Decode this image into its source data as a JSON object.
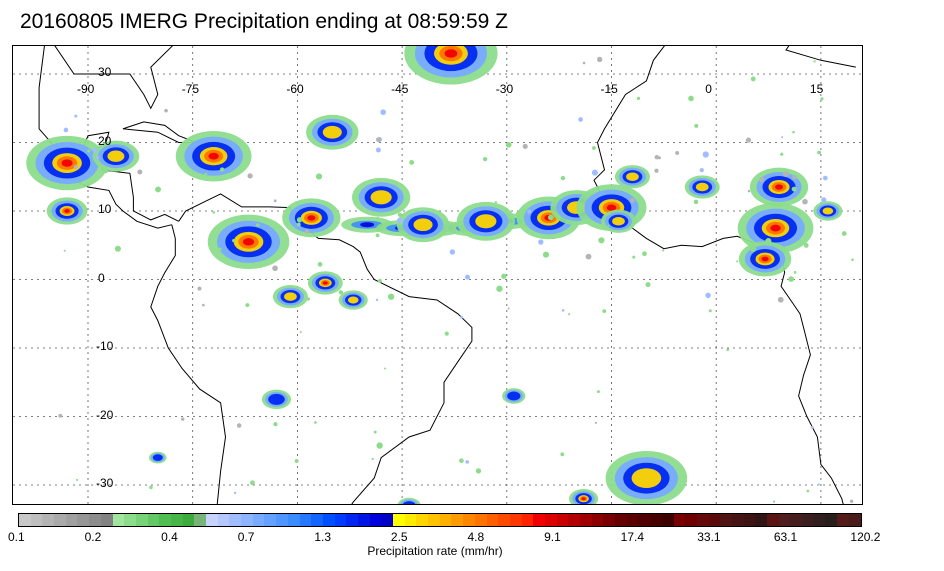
{
  "title": "20160805 IMERG Precipitation ending at 08:59:59 Z",
  "map": {
    "lon_labels": [
      "-90",
      "-75",
      "-60",
      "-45",
      "-30",
      "-15",
      "0",
      "15"
    ],
    "lon_values": [
      -90,
      -75,
      -60,
      -45,
      -30,
      -15,
      0,
      15
    ],
    "lat_labels": [
      "30",
      "20",
      "10",
      "0",
      "-10",
      "-20",
      "-30"
    ],
    "lat_values": [
      30,
      20,
      10,
      0,
      -10,
      -20,
      -30
    ],
    "lon_range": [
      -96,
      20
    ],
    "lat_range": [
      36,
      -36
    ],
    "grid": "dotted",
    "coastline_color": "#000000"
  },
  "colorbar": {
    "title": "Precipitation rate (mm/hr)",
    "tick_labels": [
      "0.1",
      "0.2",
      "0.4",
      "0.7",
      "1.3",
      "2.5",
      "4.8",
      "9.1",
      "17.4",
      "33.1",
      "63.1",
      "120.2"
    ],
    "colors": [
      "#c8c8c8",
      "#bebebe",
      "#b4b4b4",
      "#aaaaaa",
      "#a0a0a0",
      "#969696",
      "#8c8c8c",
      "#828282",
      "#a0e6a0",
      "#8cdc8c",
      "#78d278",
      "#64c864",
      "#50be50",
      "#46b446",
      "#3caa3c",
      "#78b478",
      "#c8d2ff",
      "#b4c8ff",
      "#a0beff",
      "#8cb4ff",
      "#78aaff",
      "#64a0ff",
      "#5096ff",
      "#3c8cff",
      "#2878ff",
      "#1464ff",
      "#0050ff",
      "#003cff",
      "#0028f0",
      "#0014e6",
      "#0000dc",
      "#0000c8",
      "#ffff00",
      "#ffeb00",
      "#ffd700",
      "#ffc300",
      "#ffaf00",
      "#ff9b00",
      "#ff8700",
      "#ff7300",
      "#ff5f00",
      "#ff4b00",
      "#ff3700",
      "#ff2300",
      "#f00000",
      "#dc0000",
      "#c80000",
      "#b40000",
      "#a00000",
      "#8c0000",
      "#780000",
      "#640000",
      "#5a0000",
      "#500000",
      "#460000",
      "#3c0000",
      "#780000",
      "#6e0000",
      "#640a0a",
      "#5a0a0a",
      "#501414",
      "#461414",
      "#3c1414",
      "#321414",
      "#5a1414",
      "#501e1e",
      "#461e1e",
      "#3c1e1e",
      "#321e1e",
      "#281e1e",
      "#551a1a",
      "#4b1a1a"
    ]
  },
  "precip_cells": [
    {
      "lon": -38,
      "lat": 33,
      "r": 1.6,
      "level": "high"
    },
    {
      "lon": -55,
      "lat": 21.5,
      "r": 0.9,
      "level": "med"
    },
    {
      "lon": -72,
      "lat": 18,
      "r": 1.3,
      "level": "high"
    },
    {
      "lon": -93,
      "lat": 17,
      "r": 1.4,
      "level": "high"
    },
    {
      "lon": -86,
      "lat": 18,
      "r": 0.8,
      "level": "med"
    },
    {
      "lon": -93,
      "lat": 10,
      "r": 0.7,
      "level": "high"
    },
    {
      "lon": -67,
      "lat": 5.5,
      "r": 1.4,
      "level": "high"
    },
    {
      "lon": -58,
      "lat": 9,
      "r": 1.0,
      "level": "high"
    },
    {
      "lon": -48,
      "lat": 12,
      "r": 1.0,
      "level": "med"
    },
    {
      "lon": -42,
      "lat": 8,
      "r": 0.9,
      "level": "med"
    },
    {
      "lon": -33,
      "lat": 8.5,
      "r": 1.0,
      "level": "med"
    },
    {
      "lon": -24,
      "lat": 9,
      "r": 1.1,
      "level": "high"
    },
    {
      "lon": -20,
      "lat": 10.5,
      "r": 0.9,
      "level": "med"
    },
    {
      "lon": -15,
      "lat": 10.5,
      "r": 1.2,
      "level": "high"
    },
    {
      "lon": -12,
      "lat": 15,
      "r": 0.6,
      "level": "med"
    },
    {
      "lon": -2,
      "lat": 13.5,
      "r": 0.6,
      "level": "med"
    },
    {
      "lon": 9,
      "lat": 13.5,
      "r": 1.0,
      "level": "high"
    },
    {
      "lon": 8.5,
      "lat": 7.5,
      "r": 1.3,
      "level": "high"
    },
    {
      "lon": 7,
      "lat": 3,
      "r": 0.9,
      "level": "high"
    },
    {
      "lon": 16,
      "lat": 10,
      "r": 0.5,
      "level": "med"
    },
    {
      "lon": -56,
      "lat": -0.5,
      "r": 0.6,
      "level": "high"
    },
    {
      "lon": -61,
      "lat": -2.5,
      "r": 0.6,
      "level": "med"
    },
    {
      "lon": -52,
      "lat": -3,
      "r": 0.5,
      "level": "med"
    },
    {
      "lon": -63,
      "lat": -17.5,
      "r": 0.5,
      "level": "low"
    },
    {
      "lon": -29,
      "lat": -17,
      "r": 0.4,
      "level": "low"
    },
    {
      "lon": -10,
      "lat": -29,
      "r": 1.4,
      "level": "med"
    },
    {
      "lon": -19,
      "lat": -32,
      "r": 0.5,
      "level": "high"
    },
    {
      "lon": -44,
      "lat": -33,
      "r": 0.4,
      "level": "low"
    },
    {
      "lon": -80,
      "lat": -26,
      "r": 0.3,
      "level": "low"
    },
    {
      "lon": -14,
      "lat": 8.5,
      "r": 0.6,
      "level": "med"
    }
  ],
  "itcz_band": [
    {
      "lon": -50,
      "lat": 8
    },
    {
      "lon": -45,
      "lat": 7.5
    },
    {
      "lon": -40,
      "lat": 7.5
    },
    {
      "lon": -35,
      "lat": 7.5
    },
    {
      "lon": -30,
      "lat": 8.5
    },
    {
      "lon": -25,
      "lat": 9.5
    },
    {
      "lon": -20,
      "lat": 10.5
    },
    {
      "lon": -15,
      "lat": 11
    }
  ]
}
